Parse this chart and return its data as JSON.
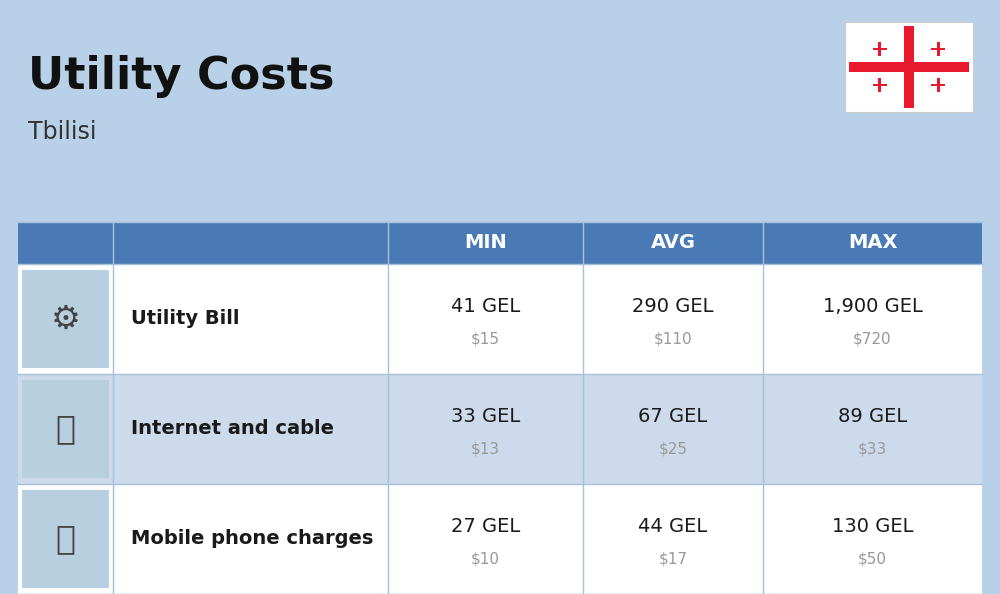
{
  "title": "Utility Costs",
  "subtitle": "Tbilisi",
  "background_color": "#b8d0e8",
  "header_color": "#4a7ab5",
  "header_text_color": "#ffffff",
  "row_colors": [
    "#ffffff",
    "#ccdaeb",
    "#ffffff"
  ],
  "cell_text_color": "#1a1a1a",
  "usd_text_color": "#999999",
  "col_headers": [
    "MIN",
    "AVG",
    "MAX"
  ],
  "rows": [
    {
      "label": "Utility Bill",
      "gel_values": [
        "41 GEL",
        "290 GEL",
        "1,900 GEL"
      ],
      "usd_values": [
        "$15",
        "$110",
        "$720"
      ]
    },
    {
      "label": "Internet and cable",
      "gel_values": [
        "33 GEL",
        "67 GEL",
        "89 GEL"
      ],
      "usd_values": [
        "$13",
        "$25",
        "$33"
      ]
    },
    {
      "label": "Mobile phone charges",
      "gel_values": [
        "27 GEL",
        "44 GEL",
        "130 GEL"
      ],
      "usd_values": [
        "$10",
        "$17",
        "$50"
      ]
    }
  ],
  "flag_color": "#e8192c",
  "divider_color": "#a8c0d8"
}
